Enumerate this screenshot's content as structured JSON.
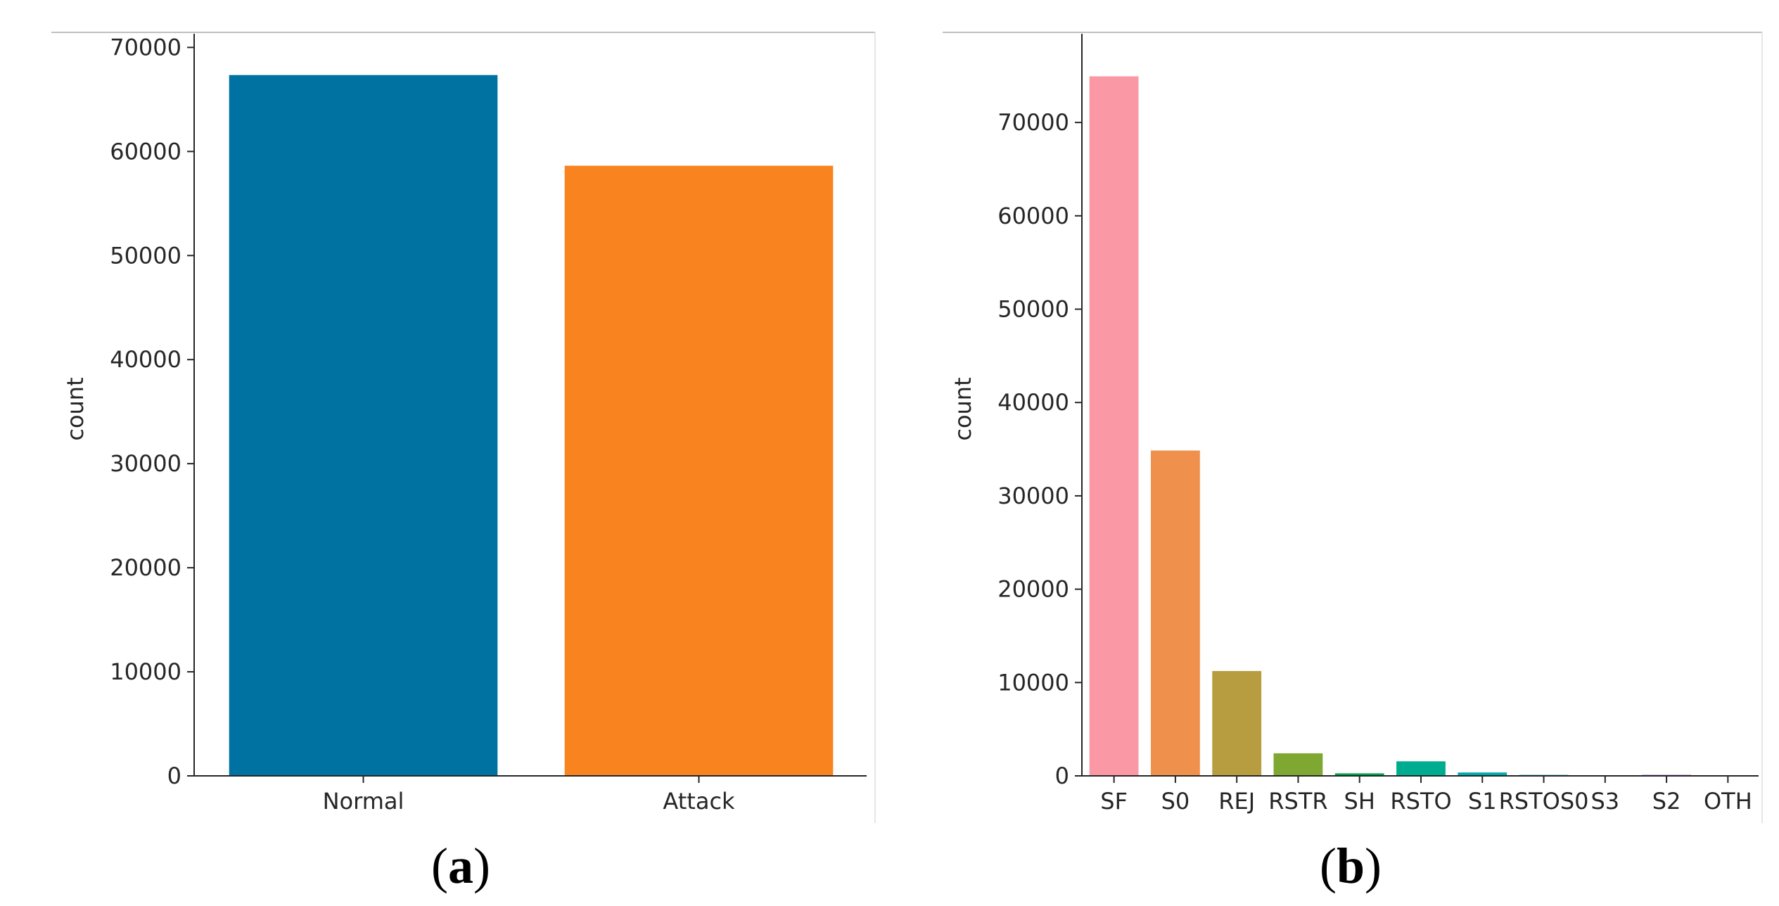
{
  "chart_data": [
    {
      "type": "bar",
      "panel": "a",
      "categories": [
        "Normal",
        "Attack"
      ],
      "values": [
        67343,
        58630
      ],
      "colors": [
        "#0072a2",
        "#f9831f"
      ],
      "title": "",
      "xlabel": "",
      "ylabel": "count",
      "ylim": [
        0,
        70500
      ],
      "yticks": [
        0,
        10000,
        20000,
        30000,
        40000,
        50000,
        60000,
        70000
      ],
      "grid": false
    },
    {
      "type": "bar",
      "panel": "b",
      "categories": [
        "SF",
        "S0",
        "REJ",
        "RSTR",
        "SH",
        "RSTO",
        "S1",
        "RSTOS0",
        "S3",
        "S2",
        "OTH"
      ],
      "values": [
        74945,
        34851,
        11233,
        2421,
        271,
        1562,
        365,
        103,
        49,
        127,
        46
      ],
      "colors": [
        "#fa98a6",
        "#ef904c",
        "#b79d40",
        "#7ea832",
        "#00a14b",
        "#00ac90",
        "#00aaa8",
        "#0ba4bd",
        "#9da0e6",
        "#c98ce8",
        "#f48dd2"
      ],
      "title": "",
      "xlabel": "",
      "ylabel": "count",
      "ylim": [
        0,
        78600
      ],
      "yticks": [
        0,
        10000,
        20000,
        30000,
        40000,
        50000,
        60000,
        70000
      ],
      "grid": false
    }
  ]
}
